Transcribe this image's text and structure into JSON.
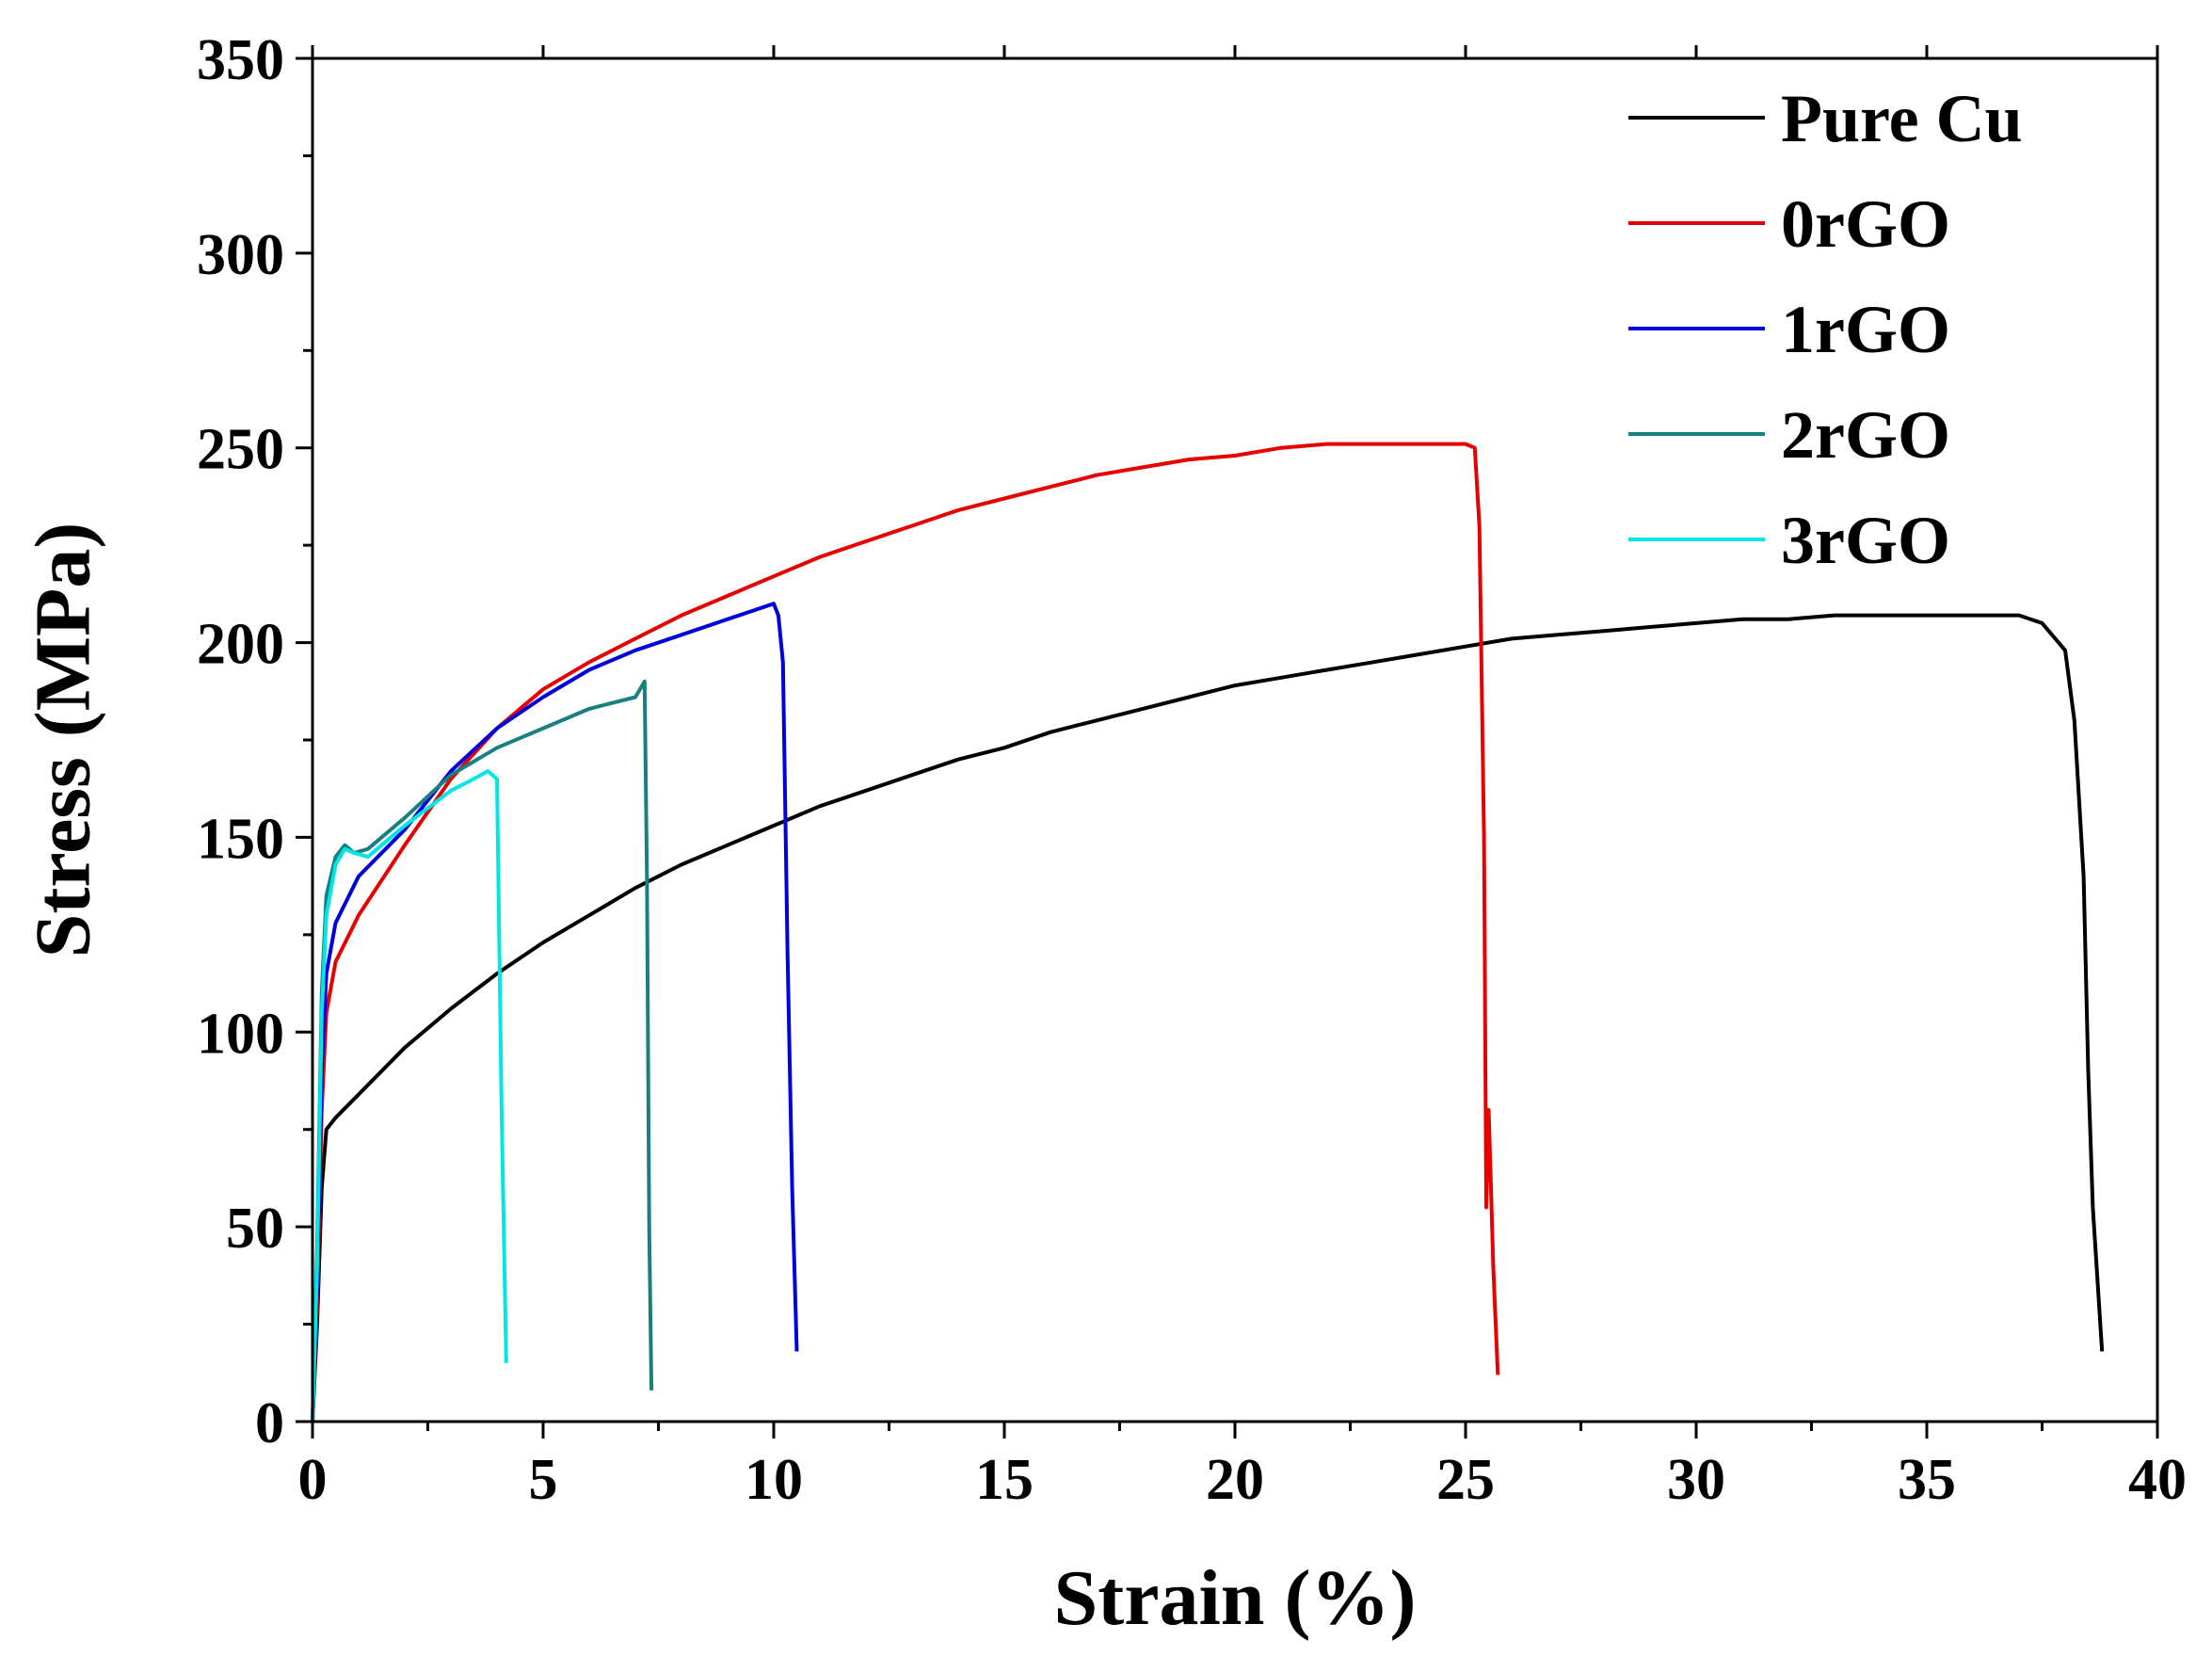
{
  "chart_data": {
    "type": "line",
    "title": "",
    "xlabel": "Strain (%)",
    "ylabel": "Stress (MPa)",
    "xlim": [
      0,
      40
    ],
    "ylim": [
      0,
      350
    ],
    "xticks": [
      0,
      5,
      10,
      15,
      20,
      25,
      30,
      35,
      40
    ],
    "yticks": [
      0,
      50,
      100,
      150,
      200,
      250,
      300,
      350
    ],
    "grid": false,
    "legend_position": "top-right",
    "series": [
      {
        "name": "Pure Cu",
        "color": "#000000",
        "x": [
          0,
          0.1,
          0.2,
          0.3,
          0.5,
          1,
          2,
          3,
          4,
          5,
          6,
          7,
          8,
          9,
          10,
          11,
          12,
          13,
          14,
          15,
          16,
          17,
          18,
          19,
          20,
          21,
          22,
          23,
          24,
          25,
          26,
          27,
          28,
          29,
          30,
          31,
          32,
          33,
          34,
          35,
          36,
          37,
          37.5,
          38.0,
          38.2,
          38.4,
          38.5,
          38.6,
          38.8
        ],
        "y": [
          0,
          25,
          60,
          75,
          78,
          84,
          96,
          106,
          115,
          123,
          130,
          137,
          143,
          148,
          153,
          158,
          162,
          166,
          170,
          173,
          177,
          180,
          183,
          186,
          189,
          191,
          193,
          195,
          197,
          199,
          201,
          202,
          203,
          204,
          205,
          206,
          206,
          207,
          207,
          207,
          207,
          207,
          205,
          198,
          180,
          140,
          90,
          55,
          18
        ]
      },
      {
        "name": "0rGO",
        "color": "#e60000",
        "x": [
          0,
          0.1,
          0.2,
          0.3,
          0.5,
          1,
          2,
          3,
          4,
          5,
          6,
          7,
          8,
          9,
          10,
          11,
          12,
          13,
          14,
          15,
          16,
          17,
          18,
          19,
          20,
          21,
          22,
          23,
          24,
          25,
          25.2,
          25.3,
          25.4,
          25.45,
          25.5,
          25.55,
          25.6,
          25.7
        ],
        "y": [
          0,
          30,
          80,
          105,
          118,
          130,
          148,
          165,
          178,
          188,
          195,
          201,
          207,
          212,
          217,
          222,
          226,
          230,
          234,
          237,
          240,
          243,
          245,
          247,
          248,
          250,
          251,
          251,
          251,
          251,
          250,
          230,
          150,
          55,
          80,
          60,
          40,
          12
        ]
      },
      {
        "name": "1rGO",
        "color": "#0000dd",
        "x": [
          0,
          0.1,
          0.2,
          0.3,
          0.5,
          1,
          2,
          3,
          4,
          5,
          6,
          7,
          8,
          9,
          9.5,
          10,
          10.1,
          10.2,
          10.3,
          10.4,
          10.5
        ],
        "y": [
          0,
          35,
          90,
          115,
          128,
          140,
          152,
          167,
          178,
          186,
          193,
          198,
          202,
          206,
          208,
          210,
          207,
          195,
          120,
          60,
          18
        ]
      },
      {
        "name": "2rGO",
        "color": "#188080",
        "x": [
          0,
          0.1,
          0.2,
          0.3,
          0.5,
          0.7,
          0.9,
          1.2,
          2,
          3,
          4,
          5,
          6,
          7,
          7.2,
          7.25,
          7.3,
          7.35
        ],
        "y": [
          0,
          45,
          110,
          135,
          145,
          148,
          146,
          147,
          155,
          166,
          173,
          178,
          183,
          186,
          190,
          140,
          50,
          8
        ]
      },
      {
        "name": "3rGO",
        "color": "#00e5e5",
        "x": [
          0,
          0.1,
          0.2,
          0.3,
          0.5,
          0.7,
          0.9,
          1.2,
          2,
          3,
          3.5,
          3.8,
          4.0,
          4.1,
          4.2
        ],
        "y": [
          0,
          40,
          105,
          130,
          143,
          147,
          146,
          145,
          153,
          162,
          165,
          167,
          165,
          80,
          15
        ]
      }
    ]
  }
}
